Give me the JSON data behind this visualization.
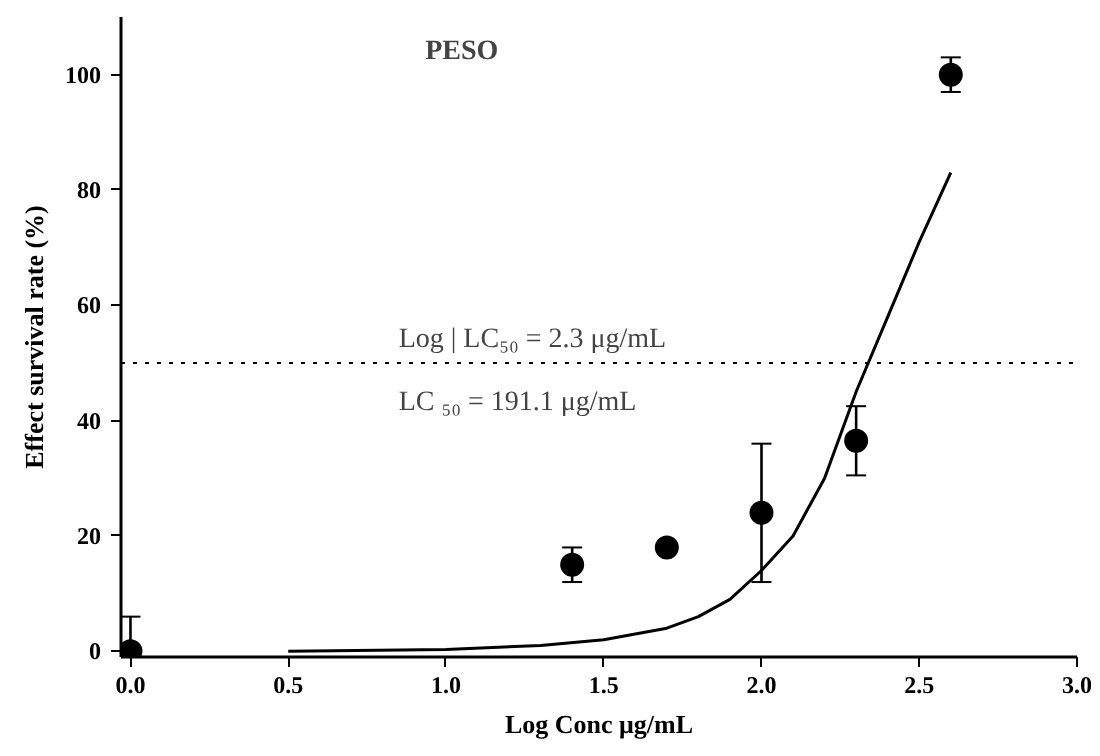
{
  "chart_data": {
    "type": "scatter",
    "title": "PESO",
    "xlabel": "Log Conc μg/mL",
    "ylabel": "Effect survival rate (%)",
    "series": [
      {
        "color": "#000000",
        "x": [
          0.0,
          1.4,
          1.7,
          2.0,
          2.3,
          2.6
        ],
        "values": [
          0,
          15,
          18,
          24,
          36.5,
          100
        ],
        "errors": [
          [
            0,
            6
          ],
          [
            12,
            18
          ],
          null,
          [
            12,
            36
          ],
          [
            30.5,
            42.5
          ],
          [
            97,
            103
          ]
        ],
        "marker": "circle"
      },
      {
        "type": "line",
        "color": "#000000",
        "x": [
          0.5,
          1.0,
          1.3,
          1.5,
          1.7,
          1.8,
          1.9,
          2.0,
          2.1,
          2.2,
          2.3,
          2.4,
          2.5,
          2.6
        ],
        "values": [
          0,
          0.3,
          1,
          2,
          4,
          6,
          9,
          14,
          20,
          30,
          45,
          58,
          71,
          83
        ],
        "line_style": "solid"
      }
    ],
    "ref_lines": [
      {
        "axis": "y",
        "value": 50,
        "line_style": "dotted",
        "color": "#000000"
      }
    ],
    "annotations": [
      "Log | LC₅₀ = 2.3 μg/mL",
      "LC ₅₀ = 191.1 μg/mL"
    ],
    "xlim": [
      -0.03,
      3.0
    ],
    "ylim": [
      -1,
      110
    ],
    "xticks": [
      {
        "value": 0,
        "label": "0.0"
      },
      0.5,
      {
        "value": 1,
        "label": "1.0"
      },
      1.5,
      {
        "value": 2,
        "label": "2.0"
      },
      2.5,
      {
        "value": 3,
        "label": "3.0"
      }
    ],
    "yticks": [
      0,
      20,
      40,
      60,
      80,
      100
    ],
    "grid": false
  }
}
